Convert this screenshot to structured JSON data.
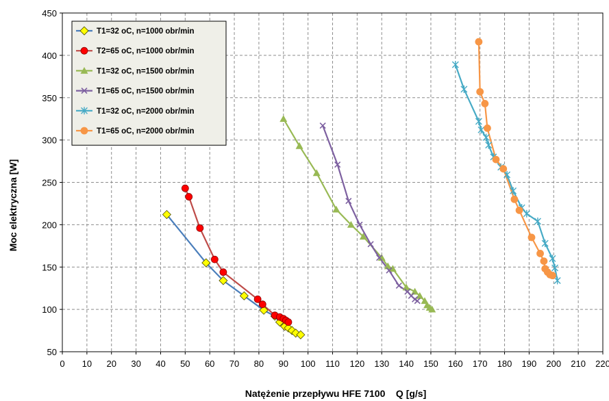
{
  "chart_data": {
    "type": "line",
    "xlabel": "Natężenie przepływu HFE 7100    Q [g/s]",
    "ylabel": "Moc elektryczna  [W]",
    "xlim": [
      0,
      220
    ],
    "ylim": [
      50,
      450
    ],
    "xticks": [
      "0",
      "10",
      "20",
      "30",
      "40",
      "50",
      "60",
      "70",
      "80",
      "90",
      "100",
      "110",
      "120",
      "130",
      "140",
      "150",
      "160",
      "170",
      "180",
      "190",
      "200",
      "210",
      "220"
    ],
    "yticks": [
      "50",
      "100",
      "150",
      "200",
      "250",
      "300",
      "350",
      "400",
      "450"
    ],
    "grid": true,
    "legend_position": "top-left",
    "series": [
      {
        "name": "T1=32 oC, n=1000 obr/min",
        "line_color": "#4a7ebb",
        "marker": "diamond",
        "marker_color": "#ffff00",
        "x": [
          42.5,
          58.5,
          65.5,
          74.0,
          82.0,
          86.5,
          88.5,
          90.5,
          92.0,
          93.5,
          95.0,
          97.0
        ],
        "y": [
          212,
          155,
          134,
          116,
          99,
          92,
          85,
          80,
          78,
          75,
          72,
          70
        ]
      },
      {
        "name": "T2=65 oC, n=1000 obr/min",
        "line_color": "#be4b48",
        "marker": "circle",
        "marker_color": "#ff0000",
        "x": [
          50.0,
          51.5,
          56.0,
          62.0,
          65.5,
          79.5,
          81.5,
          86.5,
          88.5,
          90.0,
          91.0,
          92.0
        ],
        "y": [
          243,
          233,
          196,
          159,
          144,
          112,
          106,
          93,
          91,
          89,
          87,
          85
        ]
      },
      {
        "name": "T1=32 oC, n=1500 obr/min",
        "line_color": "#98b954",
        "marker": "triangle",
        "marker_color": "#98b954",
        "x": [
          90.0,
          96.5,
          103.5,
          111.5,
          117.5,
          122.5,
          130.0,
          132.5,
          134.5,
          140.0,
          143.5,
          145.5,
          147.5,
          148.5,
          149.5,
          150.5
        ],
        "y": [
          325,
          293,
          261,
          218,
          200,
          186,
          161,
          151,
          148,
          126,
          121,
          116,
          110,
          105,
          102,
          100
        ]
      },
      {
        "name": "T1=65 oC, n=1500 obr/min",
        "line_color": "#7d60a0",
        "marker": "x",
        "marker_color": "#7d60a0",
        "x": [
          106.0,
          112.0,
          116.5,
          121.0,
          125.5,
          129.0,
          133.0,
          137.0,
          140.5,
          142.0,
          143.5,
          144.5
        ],
        "y": [
          317,
          271,
          228,
          200,
          177,
          161,
          146,
          128,
          121,
          116,
          112,
          110
        ]
      },
      {
        "name": "T1=32 oC, n=2000 obr/min",
        "line_color": "#46aac5",
        "marker": "star",
        "marker_color": "#46aac5",
        "x": [
          160.0,
          163.5,
          169.5,
          170.5,
          172.5,
          173.5,
          175.5,
          178.5,
          181.0,
          183.5,
          187.0,
          189.0,
          193.5,
          196.5,
          199.5,
          200.5,
          201.5
        ],
        "y": [
          389,
          360,
          322,
          312,
          303,
          294,
          280,
          268,
          259,
          240,
          220,
          213,
          204,
          178,
          160,
          149,
          134
        ]
      },
      {
        "name": "T1=65 oC, n=2000 obr/min",
        "line_color": "#f79646",
        "marker": "circle",
        "marker_color": "#f79646",
        "x": [
          169.5,
          170.0,
          172.0,
          173.0,
          176.5,
          179.5,
          184.0,
          186.0,
          191.0,
          194.5,
          196.0,
          196.5,
          197.5,
          198.5,
          199.5
        ],
        "y": [
          416,
          357,
          343,
          314,
          277,
          266,
          230,
          217,
          185,
          166,
          157,
          148,
          144,
          141,
          140
        ]
      }
    ]
  }
}
